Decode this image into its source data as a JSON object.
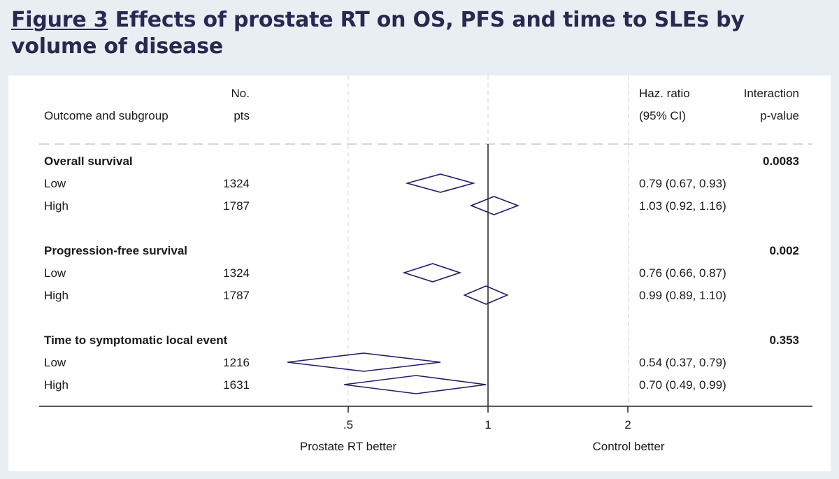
{
  "figure": {
    "label": "Figure 3",
    "title": "Effects of prostate RT on OS, PFS and time to SLEs by volume of disease"
  },
  "chart_data": {
    "type": "forest",
    "columns": {
      "outcome": "Outcome and subgroup",
      "pts_line1": "No.",
      "pts_line2": "pts",
      "hr_line1": "Haz. ratio",
      "hr_line2": "(95% CI)",
      "p_line1": "Interaction",
      "p_line2": "p-value"
    },
    "groups": [
      {
        "name": "Overall survival",
        "interaction_p": "0.0083",
        "rows": [
          {
            "subgroup": "Low",
            "n": "1324",
            "hr": 0.79,
            "lo": 0.67,
            "hi": 0.93,
            "label": "0.79 (0.67, 0.93)"
          },
          {
            "subgroup": "High",
            "n": "1787",
            "hr": 1.03,
            "lo": 0.92,
            "hi": 1.16,
            "label": "1.03 (0.92, 1.16)"
          }
        ]
      },
      {
        "name": "Progression-free survival",
        "interaction_p": "0.002",
        "rows": [
          {
            "subgroup": "Low",
            "n": "1324",
            "hr": 0.76,
            "lo": 0.66,
            "hi": 0.87,
            "label": "0.76 (0.66, 0.87)"
          },
          {
            "subgroup": "High",
            "n": "1787",
            "hr": 0.99,
            "lo": 0.89,
            "hi": 1.1,
            "label": "0.99 (0.89, 1.10)"
          }
        ]
      },
      {
        "name": "Time to symptomatic local event",
        "interaction_p": "0.353",
        "rows": [
          {
            "subgroup": "Low",
            "n": "1216",
            "hr": 0.54,
            "lo": 0.37,
            "hi": 0.79,
            "label": "0.54 (0.37, 0.79)"
          },
          {
            "subgroup": "High",
            "n": "1631",
            "hr": 0.7,
            "lo": 0.49,
            "hi": 0.99,
            "label": "0.70 (0.49, 0.99)"
          }
        ]
      }
    ],
    "x_axis": {
      "scale": "log",
      "ticks": [
        {
          "value": 0.5,
          "label": ".5"
        },
        {
          "value": 1,
          "label": "1"
        },
        {
          "value": 2,
          "label": "2"
        }
      ],
      "reference_line": 1,
      "left_label": "Prostate RT better",
      "right_label": "Control better"
    },
    "colors": {
      "marker": "#1f1f6b",
      "text": "#1a1a1a",
      "title": "#2b2850"
    }
  }
}
